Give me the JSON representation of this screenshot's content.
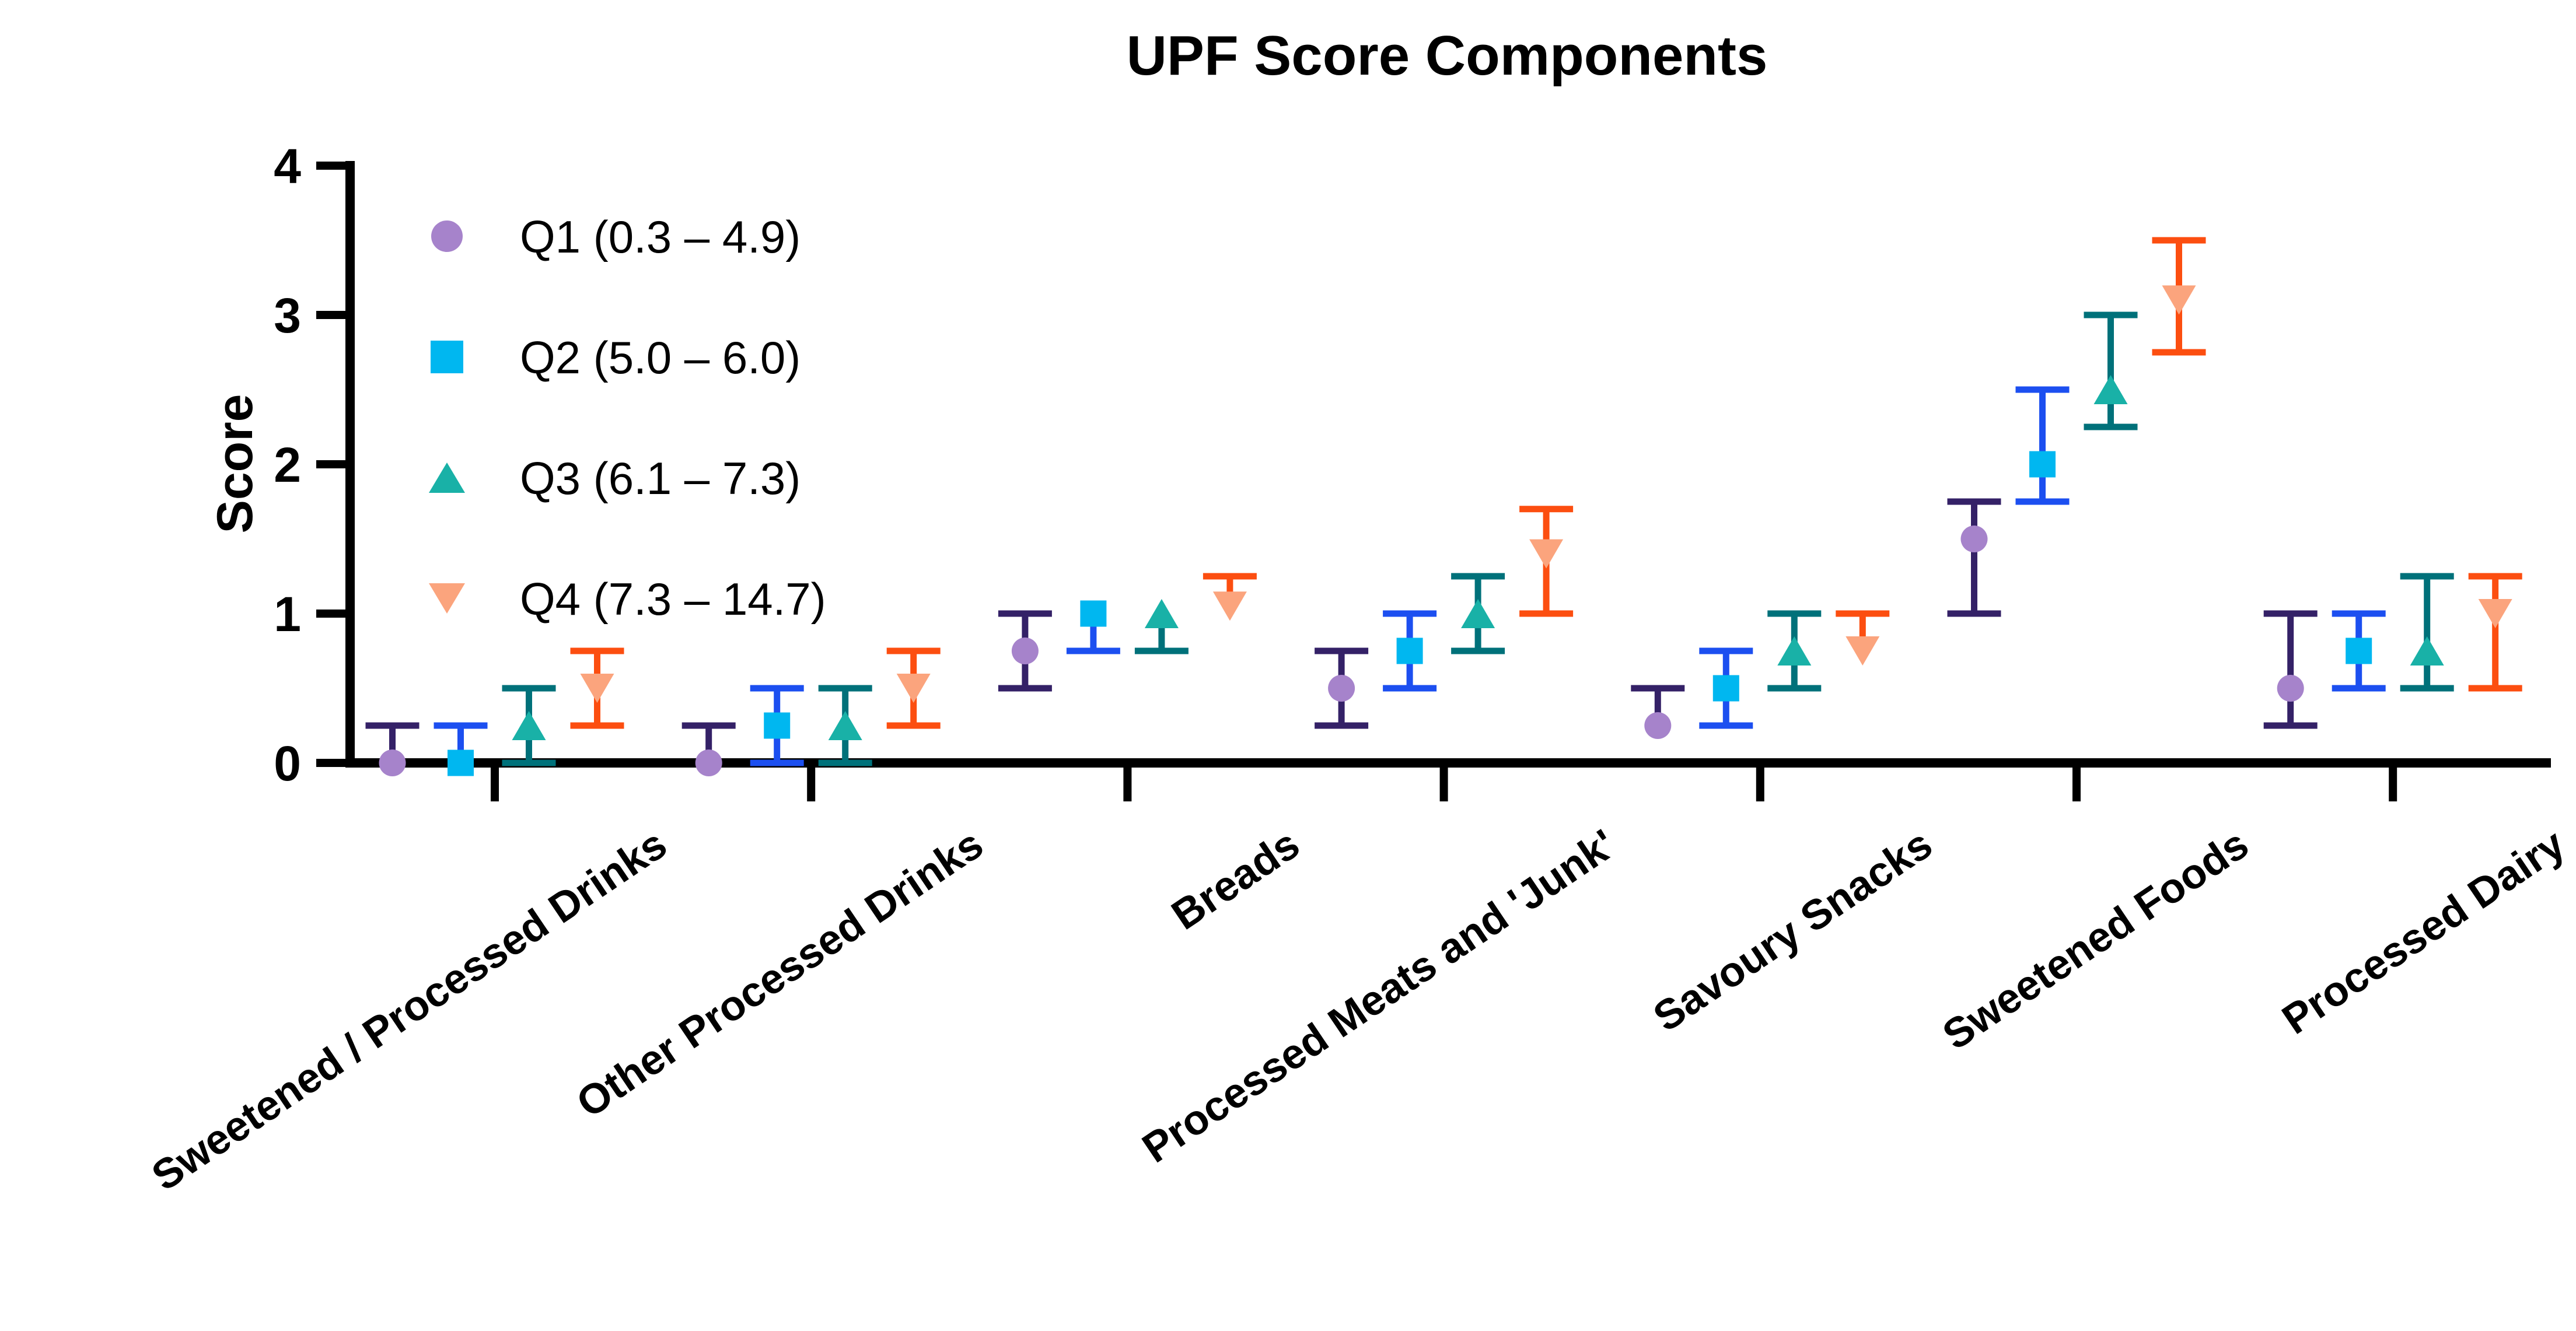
{
  "chart_data": {
    "type": "scatter",
    "title": "UPF Score Components",
    "xlabel": "",
    "ylabel": "Score",
    "ylim": [
      0,
      4
    ],
    "yticks": [
      0,
      1,
      2,
      3,
      4
    ],
    "grid": false,
    "legend_position": "top-left-inside",
    "categories": [
      "Sweetened / Processed Drinks",
      "Other Processed Drinks",
      "Breads",
      "Processed Meats and 'Junk'",
      "Savoury Snacks",
      "Sweetened Foods",
      "Processed Dairy"
    ],
    "series": [
      {
        "name": "Q1",
        "legend_label": "Q1 (0.3 – 4.9)",
        "marker": "circle",
        "marker_color": "#a683cb",
        "error_color": "#342167",
        "points": [
          {
            "v": 0.0,
            "lo": 0.0,
            "hi": 0.25
          },
          {
            "v": 0.0,
            "lo": 0.0,
            "hi": 0.25
          },
          {
            "v": 0.75,
            "lo": 0.5,
            "hi": 1.0
          },
          {
            "v": 0.5,
            "lo": 0.25,
            "hi": 0.75
          },
          {
            "v": 0.25,
            "lo": 0.25,
            "hi": 0.5
          },
          {
            "v": 1.5,
            "lo": 1.0,
            "hi": 1.75
          },
          {
            "v": 0.5,
            "lo": 0.25,
            "hi": 1.0
          }
        ]
      },
      {
        "name": "Q2",
        "legend_label": "Q2 (5.0 – 6.0)",
        "marker": "square",
        "marker_color": "#00b7f0",
        "error_color": "#1c4ff0",
        "points": [
          {
            "v": 0.0,
            "lo": 0.0,
            "hi": 0.25
          },
          {
            "v": 0.25,
            "lo": 0.0,
            "hi": 0.5
          },
          {
            "v": 1.0,
            "lo": 0.75,
            "hi": 1.0
          },
          {
            "v": 0.75,
            "lo": 0.5,
            "hi": 1.0
          },
          {
            "v": 0.5,
            "lo": 0.25,
            "hi": 0.75
          },
          {
            "v": 2.0,
            "lo": 1.75,
            "hi": 2.5
          },
          {
            "v": 0.75,
            "lo": 0.5,
            "hi": 1.0
          }
        ]
      },
      {
        "name": "Q3",
        "legend_label": "Q3 (6.1 – 7.3)",
        "marker": "triangle-up",
        "marker_color": "#19b1a7",
        "error_color": "#00717a",
        "points": [
          {
            "v": 0.25,
            "lo": 0.0,
            "hi": 0.5
          },
          {
            "v": 0.25,
            "lo": 0.0,
            "hi": 0.5
          },
          {
            "v": 1.0,
            "lo": 0.75,
            "hi": 1.0
          },
          {
            "v": 1.0,
            "lo": 0.75,
            "hi": 1.25
          },
          {
            "v": 0.75,
            "lo": 0.5,
            "hi": 1.0
          },
          {
            "v": 2.5,
            "lo": 2.25,
            "hi": 3.0
          },
          {
            "v": 0.75,
            "lo": 0.5,
            "hi": 1.25
          }
        ]
      },
      {
        "name": "Q4",
        "legend_label": "Q4 (7.3 – 14.7)",
        "marker": "triangle-down",
        "marker_color": "#fba47d",
        "error_color": "#fc4e10",
        "points": [
          {
            "v": 0.5,
            "lo": 0.25,
            "hi": 0.75
          },
          {
            "v": 0.5,
            "lo": 0.25,
            "hi": 0.75
          },
          {
            "v": 1.05,
            "lo": 1.05,
            "hi": 1.25
          },
          {
            "v": 1.4,
            "lo": 1.0,
            "hi": 1.7
          },
          {
            "v": 0.75,
            "lo": 0.75,
            "hi": 1.0
          },
          {
            "v": 3.1,
            "lo": 2.75,
            "hi": 3.5
          },
          {
            "v": 1.0,
            "lo": 0.5,
            "hi": 1.25
          }
        ]
      }
    ]
  }
}
